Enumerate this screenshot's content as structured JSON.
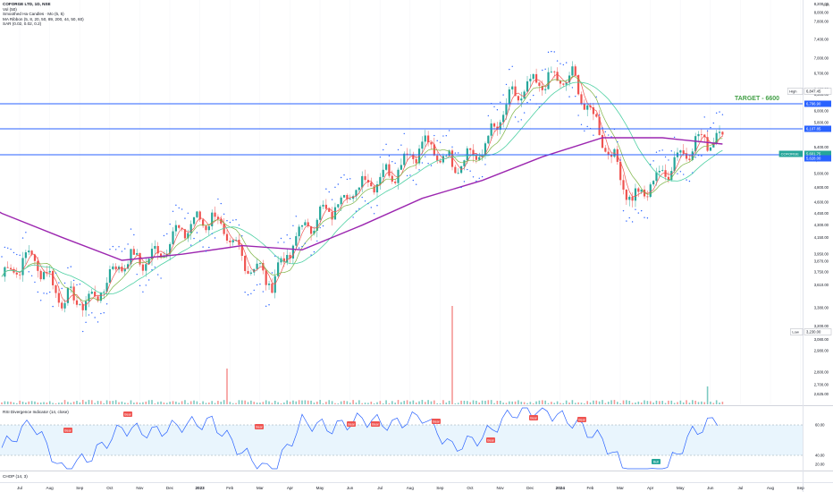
{
  "legend": {
    "symbol_line": "COFORGE LTD, 1D, NSE",
    "lines": [
      "Vol (50)",
      "Smoothed Ha Candles · Mo (5, 5)",
      "MA Ribbon (5, 8, 20, 50, 89, 200, 44, 50, 60)",
      "SAR (0.02, 0.02, 0.2)"
    ]
  },
  "currency": "INR",
  "target_label": "TARGET - 6600",
  "price_axis": {
    "ticks": [
      "8,200.00",
      "8,000.00",
      "7,800.00",
      "7,400.00",
      "7,000.00",
      "6,700.00",
      "6,400.00",
      "6,300.00",
      "6,000.00",
      "5,800.00",
      "5,400.00",
      "5,200.00",
      "5,000.00",
      "4,800.00",
      "4,600.00",
      "4,450.00",
      "4,300.00",
      "4,150.00",
      "3,950.00",
      "3,870.00",
      "3,750.00",
      "3,610.00",
      "3,380.00",
      "3,200.00",
      "3,080.00",
      "2,980.00",
      "2,800.00",
      "2,700.00",
      "2,625.00",
      "2,547.50"
    ],
    "badges": [
      {
        "label": "High",
        "value": "6,847.45"
      },
      {
        "label": "",
        "value": "6,796.90"
      },
      {
        "label": "",
        "value": "6,107.85"
      },
      {
        "label": "COFORGE",
        "value": "5,601.75"
      },
      {
        "label": "",
        "value": "5,628.00"
      },
      {
        "label": "Low",
        "value": "3,230.00"
      }
    ]
  },
  "time_axis": [
    "Jul",
    "Aug",
    "Sep",
    "Oct",
    "Nov",
    "Dec",
    "2023",
    "Feb",
    "Mar",
    "Apr",
    "May",
    "Jun",
    "Jul",
    "Aug",
    "Sep",
    "Oct",
    "Nov",
    "Dec",
    "2024",
    "Feb",
    "Mar",
    "Apr",
    "May",
    "Jun",
    "Jul",
    "Aug",
    "Sep"
  ],
  "rsi": {
    "title": "RSI Divergence Indicator (14, close)",
    "levels": [
      "60.00",
      "40.00",
      "20.00"
    ],
    "bear_label": "Bear",
    "bull_label": "Bull"
  },
  "chop": {
    "title": "CHOP (14, 3)"
  },
  "colors": {
    "up": "#26a69a",
    "down": "#ef5350",
    "hline": "#2962ff",
    "ma200": "#9c27b0",
    "ma_mid": "#4dd0a3",
    "ma_fast": "#7cb342",
    "sar": "#2962ff",
    "target": "#43a047",
    "rsi_line": "#2962ff",
    "rsi_band": "#e3f2fd"
  },
  "chart_data": {
    "type": "candlestick",
    "title": "COFORGE LTD, 1D, NSE",
    "ylim": [
      2547.5,
      8300
    ],
    "period": "2022-07 to 2024-07",
    "horizontal_lines": [
      6796.9,
      6107.85,
      5628.0
    ],
    "target_line": 6600,
    "high": 6847.45,
    "low": 3230.0,
    "last_close": 5601.75,
    "monthly_close": [
      {
        "month": "Jul",
        "value": 3700
      },
      {
        "month": "Aug",
        "value": 3930
      },
      {
        "month": "Sep",
        "value": 3470
      },
      {
        "month": "Oct",
        "value": 3440
      },
      {
        "month": "Nov",
        "value": 3870
      },
      {
        "month": "Dec",
        "value": 3900
      },
      {
        "month": "2023",
        "value": 4250
      },
      {
        "month": "Feb",
        "value": 4410
      },
      {
        "month": "Mar",
        "value": 3900
      },
      {
        "month": "Apr",
        "value": 3640
      },
      {
        "month": "May",
        "value": 4250
      },
      {
        "month": "Jun",
        "value": 4520
      },
      {
        "month": "Jul",
        "value": 4850
      },
      {
        "month": "Aug",
        "value": 5020
      },
      {
        "month": "Sep",
        "value": 5450
      },
      {
        "month": "Oct",
        "value": 5150
      },
      {
        "month": "Nov",
        "value": 5330
      },
      {
        "month": "Dec",
        "value": 6250
      },
      {
        "month": "2024",
        "value": 6550
      },
      {
        "month": "Feb",
        "value": 6600
      },
      {
        "month": "Mar",
        "value": 5550
      },
      {
        "month": "Apr",
        "value": 4600
      },
      {
        "month": "May",
        "value": 5000
      },
      {
        "month": "Jun",
        "value": 5450
      },
      {
        "month": "Jul",
        "value": 5601.75
      }
    ],
    "ma200": [
      {
        "month": "Jul",
        "value": 4450
      },
      {
        "month": "Sep",
        "value": 4150
      },
      {
        "month": "Nov",
        "value": 3880
      },
      {
        "month": "2023",
        "value": 3950
      },
      {
        "month": "Mar",
        "value": 4050
      },
      {
        "month": "May",
        "value": 4000
      },
      {
        "month": "Jul",
        "value": 4300
      },
      {
        "month": "Sep",
        "value": 4650
      },
      {
        "month": "Nov",
        "value": 4900
      },
      {
        "month": "2024",
        "value": 5250
      },
      {
        "month": "Mar",
        "value": 5550
      },
      {
        "month": "May",
        "value": 5550
      },
      {
        "month": "Jul",
        "value": 5450
      }
    ],
    "rsi_values": [
      {
        "month": "Jul",
        "value": 45
      },
      {
        "month": "Aug",
        "value": 62
      },
      {
        "month": "Sep",
        "value": 30
      },
      {
        "month": "Oct",
        "value": 40
      },
      {
        "month": "Nov",
        "value": 58
      },
      {
        "month": "Dec",
        "value": 55
      },
      {
        "month": "2023",
        "value": 60
      },
      {
        "month": "Feb",
        "value": 62
      },
      {
        "month": "Mar",
        "value": 42
      },
      {
        "month": "Apr",
        "value": 28
      },
      {
        "month": "May",
        "value": 62
      },
      {
        "month": "Jun",
        "value": 58
      },
      {
        "month": "Jul",
        "value": 64
      },
      {
        "month": "Aug",
        "value": 60
      },
      {
        "month": "Sep",
        "value": 66
      },
      {
        "month": "Oct",
        "value": 45
      },
      {
        "month": "Nov",
        "value": 52
      },
      {
        "month": "Dec",
        "value": 68
      },
      {
        "month": "2024",
        "value": 70
      },
      {
        "month": "Feb",
        "value": 62
      },
      {
        "month": "Mar",
        "value": 50
      },
      {
        "month": "Apr",
        "value": 25
      },
      {
        "month": "May",
        "value": 28
      },
      {
        "month": "Jun",
        "value": 55
      },
      {
        "month": "Jul",
        "value": 66
      }
    ]
  }
}
